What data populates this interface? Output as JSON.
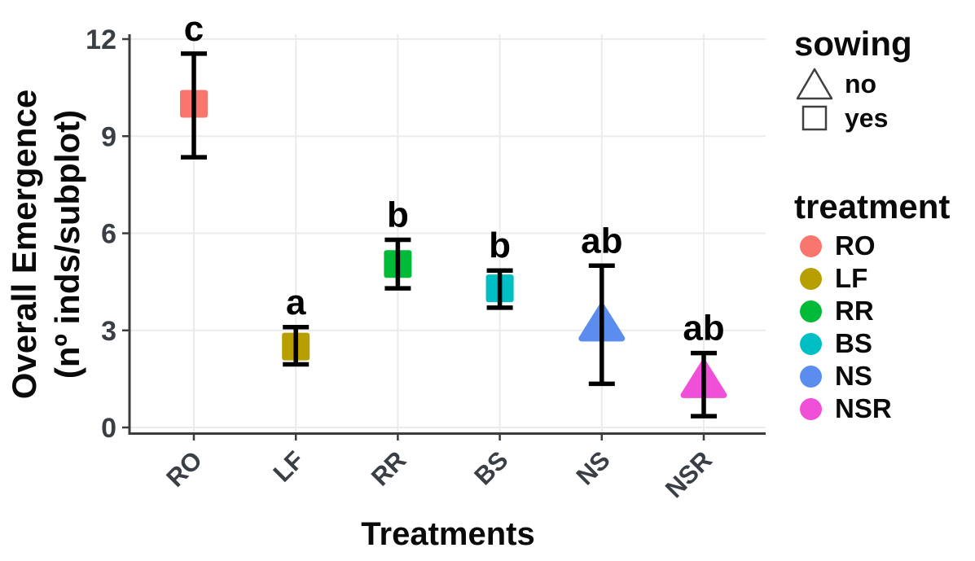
{
  "chart_data": {
    "type": "scatter",
    "title": "",
    "xlabel": "Treatments",
    "ylabel": "Overall Emergence (nº inds/subplot)",
    "ylabel_lines": [
      "Overall Emergence",
      "(nº inds/subplot)"
    ],
    "ylim": [
      0,
      12
    ],
    "yticks": [
      "0",
      "3",
      "6",
      "9",
      "12"
    ],
    "grid": "major gridlines on, white background",
    "legend_position": "right",
    "categories": [
      "RO",
      "LF",
      "RR",
      "BS",
      "NS",
      "NSR"
    ],
    "points": [
      {
        "treatment": "RO",
        "sowing": "yes",
        "marker": "square",
        "color": "#F8766D",
        "mean": 10.0,
        "ci_low": 8.35,
        "ci_high": 11.55,
        "sig_letter": "c"
      },
      {
        "treatment": "LF",
        "sowing": "yes",
        "marker": "square",
        "color": "#B79F00",
        "mean": 2.5,
        "ci_low": 1.95,
        "ci_high": 3.1,
        "sig_letter": "a"
      },
      {
        "treatment": "RR",
        "sowing": "yes",
        "marker": "square",
        "color": "#00BA38",
        "mean": 5.05,
        "ci_low": 4.3,
        "ci_high": 5.8,
        "sig_letter": "b"
      },
      {
        "treatment": "BS",
        "sowing": "yes",
        "marker": "square",
        "color": "#00BFC4",
        "mean": 4.3,
        "ci_low": 3.7,
        "ci_high": 4.85,
        "sig_letter": "b"
      },
      {
        "treatment": "NS",
        "sowing": "no",
        "marker": "triangle",
        "color": "#5B8DEE",
        "mean": 3.25,
        "ci_low": 1.35,
        "ci_high": 5.0,
        "sig_letter": "ab"
      },
      {
        "treatment": "NSR",
        "sowing": "no",
        "marker": "triangle",
        "color": "#F04FD8",
        "mean": 1.5,
        "ci_low": 0.35,
        "ci_high": 2.3,
        "sig_letter": "ab"
      }
    ],
    "colors": {
      "axis_text": "#3A3F45",
      "axis_line": "#3C3C3C",
      "gridline": "#EBEBEB",
      "errorbar": "#000000",
      "sig_letter": "#000000"
    }
  },
  "legend_sowing": {
    "title": "sowing",
    "items": [
      {
        "label": "no",
        "marker": "triangle"
      },
      {
        "label": "yes",
        "marker": "square"
      }
    ]
  },
  "legend_treatment": {
    "title": "treatment",
    "items": [
      {
        "label": "RO",
        "color": "#F8766D"
      },
      {
        "label": "LF",
        "color": "#B79F00"
      },
      {
        "label": "RR",
        "color": "#00BA38"
      },
      {
        "label": "BS",
        "color": "#00BFC4"
      },
      {
        "label": "NS",
        "color": "#5B8DEE"
      },
      {
        "label": "NSR",
        "color": "#F04FD8"
      }
    ]
  }
}
